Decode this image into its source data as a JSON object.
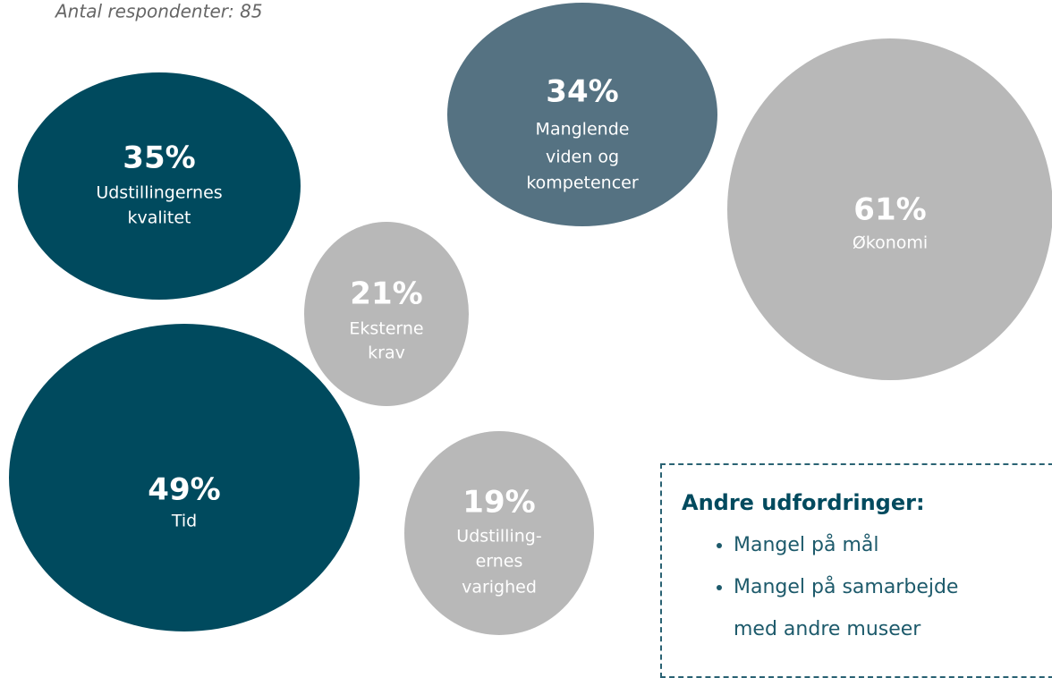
{
  "chart_data": {
    "type": "bubble",
    "subtitle": "Antal respondenter: 85",
    "categories": [
      [
        "Udstillingernes",
        "kvalitet"
      ],
      [
        "Manglende",
        "viden og",
        "kompetencer"
      ],
      [
        "Økonomi"
      ],
      [
        "Eksterne",
        "krav"
      ],
      [
        "Tid"
      ],
      [
        "Udstilling-",
        "ernes",
        "varighed"
      ]
    ],
    "values": [
      35,
      34,
      61,
      21,
      49,
      19
    ],
    "value_labels": [
      "35%",
      "34%",
      "61%",
      "21%",
      "49%",
      "19%"
    ],
    "colors": [
      "#004a5e",
      "#557282",
      "#b8b8b8",
      "#b8b8b8",
      "#004a5e",
      "#b8b8b8"
    ]
  },
  "note": {
    "title": "Andre udfordringer:",
    "items": [
      "Mangel på mål",
      "Mangel på samarbejde med andre museer"
    ]
  }
}
